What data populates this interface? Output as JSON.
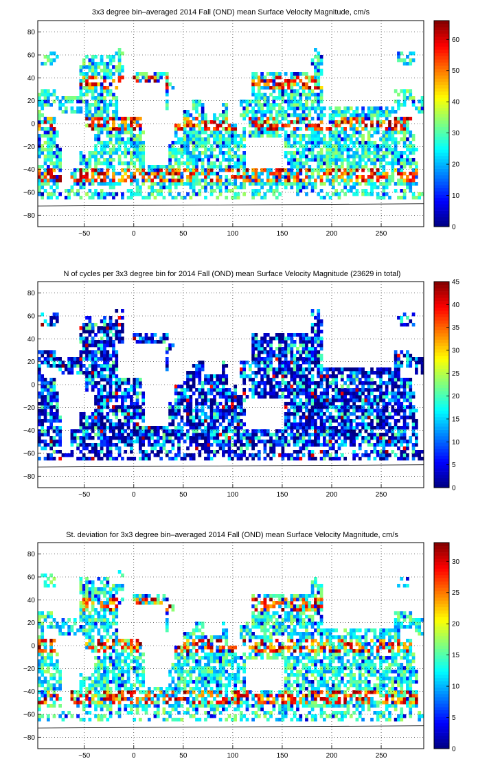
{
  "charts": [
    {
      "id": "velocity",
      "title": "3x3 degree bin–averaged 2014 Fall (OND) mean Surface Velocity Magnitude, cm/s",
      "colorbar": {
        "min": 0,
        "max": 66,
        "ticks": [
          0,
          10,
          20,
          30,
          40,
          50,
          60
        ]
      }
    },
    {
      "id": "ncycles",
      "title": "N of cycles per 3x3 degree bin for 2014 Fall (OND) mean Surface Velocity Magnitude (23629 in total)",
      "colorbar": {
        "min": 0,
        "max": 45,
        "ticks": [
          0,
          5,
          10,
          15,
          20,
          25,
          30,
          35,
          40,
          45
        ]
      }
    },
    {
      "id": "stdev",
      "title": "St. deviation for 3x3 degree bin–averaged 2014 Fall (OND) mean Surface Velocity Magnitude, cm/s",
      "colorbar": {
        "min": 0,
        "max": 33,
        "ticks": [
          0,
          5,
          10,
          15,
          20,
          25,
          30
        ]
      }
    }
  ],
  "chart_data": [
    {
      "type": "heatmap",
      "title": "3x3 degree bin–averaged 2014 Fall (OND) mean Surface Velocity Magnitude, cm/s",
      "xlim": [
        -97,
        293
      ],
      "ylim": [
        -90,
        90
      ],
      "xticks": [
        -50,
        0,
        50,
        100,
        150,
        200,
        250
      ],
      "yticks": [
        -80,
        -60,
        -40,
        -20,
        0,
        20,
        40,
        60,
        80
      ],
      "grid": "dotted",
      "colormap": "jet",
      "colorbar_range": [
        0,
        66
      ],
      "bin_size_deg": 3
    },
    {
      "type": "heatmap",
      "title": "N of cycles per 3x3 degree bin for 2014 Fall (OND) mean Surface Velocity Magnitude (23629 in total)",
      "xlim": [
        -97,
        293
      ],
      "ylim": [
        -90,
        90
      ],
      "xticks": [
        -50,
        0,
        50,
        100,
        150,
        200,
        250
      ],
      "yticks": [
        -80,
        -60,
        -40,
        -20,
        0,
        20,
        40,
        60,
        80
      ],
      "grid": "dotted",
      "colormap": "jet",
      "colorbar_range": [
        0,
        45
      ],
      "total": 23629
    },
    {
      "type": "heatmap",
      "title": "St. deviation for 3x3 degree bin–averaged 2014 Fall (OND) mean Surface Velocity Magnitude, cm/s",
      "xlim": [
        -97,
        293
      ],
      "ylim": [
        -90,
        90
      ],
      "xticks": [
        -50,
        0,
        50,
        100,
        150,
        200,
        250
      ],
      "yticks": [
        -80,
        -60,
        -40,
        -20,
        0,
        20,
        40,
        60,
        80
      ],
      "grid": "dotted",
      "colormap": "jet",
      "colorbar_range": [
        0,
        33
      ]
    }
  ]
}
